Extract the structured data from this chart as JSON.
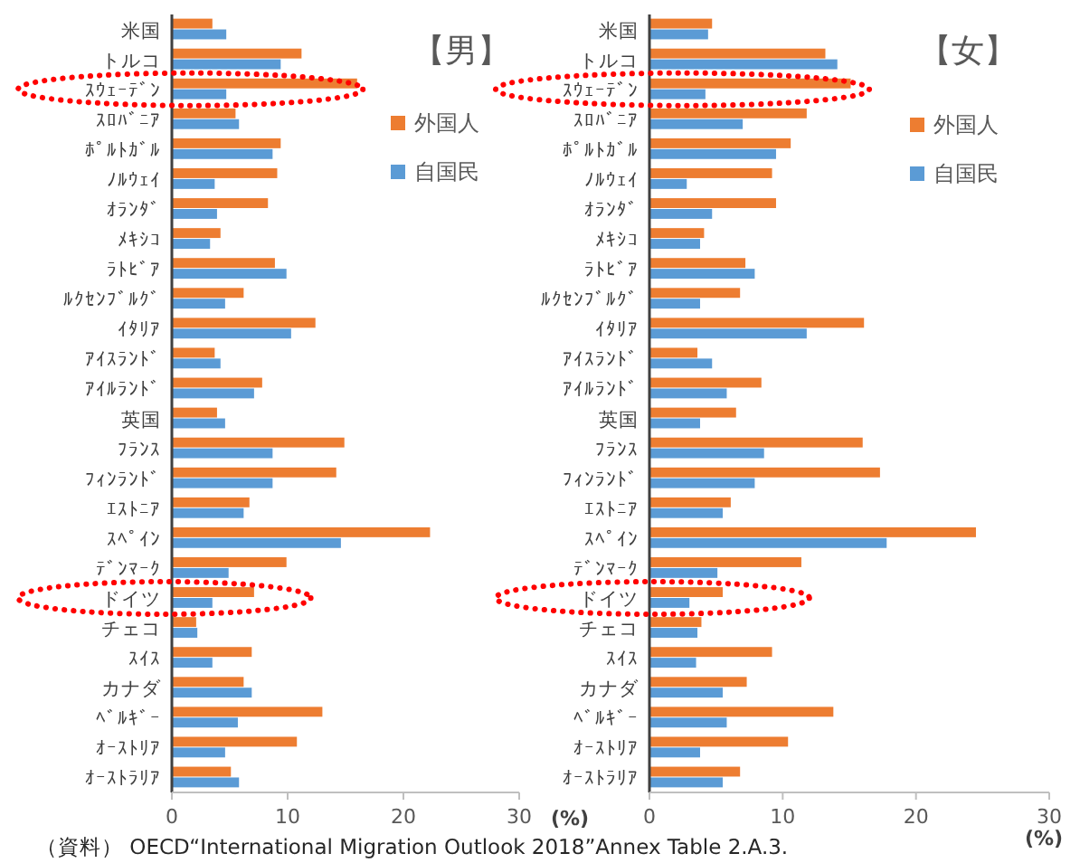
{
  "chart_data": [
    {
      "type": "bar",
      "orientation": "horizontal",
      "title": "【男】",
      "xlabel": "(%)",
      "categories": [
        "米国",
        "トルコ",
        "ｽｳｪｰﾃﾞﾝ",
        "ｽﾛﾊﾞﾆｱ",
        "ﾎﾟﾙﾄｶﾞﾙ",
        "ﾉﾙｳｪｲ",
        "ｵﾗﾝﾀﾞ",
        "ﾒｷｼｺ",
        "ﾗﾄﾋﾞｱ",
        "ﾙｸｾﾝﾌﾞﾙｸﾞ",
        "ｲﾀﾘｱ",
        "ｱｲｽﾗﾝﾄﾞ",
        "ｱｲﾙﾗﾝﾄﾞ",
        "英国",
        "ﾌﾗﾝｽ",
        "ﾌｨﾝﾗﾝﾄﾞ",
        "ｴｽﾄﾆｱ",
        "ｽﾍﾟｲﾝ",
        "ﾃﾞﾝﾏｰｸ",
        "ドイツ",
        "チェコ",
        "ｽｲｽ",
        "カナダ",
        "ﾍﾞﾙｷﾞｰ",
        "ｵｰｽﾄﾘｱ",
        "ｵｰｽﾄﾗﾘｱ"
      ],
      "series": [
        {
          "name": "外国人",
          "color": "#ed7d31",
          "values": [
            3.5,
            11.2,
            16,
            5.5,
            9.4,
            9.1,
            8.3,
            4.2,
            8.9,
            6.2,
            12.4,
            3.7,
            7.8,
            3.9,
            14.9,
            14.2,
            6.7,
            22.3,
            9.9,
            7.1,
            2.1,
            6.9,
            6.2,
            13.0,
            10.8,
            5.1
          ]
        },
        {
          "name": "自国民",
          "color": "#5b9bd5",
          "values": [
            4.7,
            9.4,
            4.7,
            5.8,
            8.7,
            3.7,
            3.9,
            3.3,
            9.9,
            4.6,
            10.3,
            4.2,
            7.1,
            4.6,
            8.7,
            8.7,
            6.2,
            14.6,
            4.9,
            3.5,
            2.2,
            3.5,
            6.9,
            5.7,
            4.6,
            5.8
          ]
        }
      ],
      "xlim": [
        0,
        30
      ],
      "xticks": [
        0,
        10,
        20,
        30
      ],
      "grid": false,
      "legend": "right",
      "annotations": [
        "（資料） OECD“International Migration Outlook 2018”Annex Table 2.A.3."
      ]
    },
    {
      "type": "bar",
      "orientation": "horizontal",
      "title": "【女】",
      "xlabel": "(%)",
      "categories": [
        "米国",
        "トルコ",
        "ｽｳｪｰﾃﾞﾝ",
        "ｽﾛﾊﾞﾆｱ",
        "ﾎﾟﾙﾄｶﾞﾙ",
        "ﾉﾙｳｪｲ",
        "ｵﾗﾝﾀﾞ",
        "ﾒｷｼｺ",
        "ﾗﾄﾋﾞｱ",
        "ﾙｸｾﾝﾌﾞﾙｸﾞ",
        "ｲﾀﾘｱ",
        "ｱｲｽﾗﾝﾄﾞ",
        "ｱｲﾙﾗﾝﾄﾞ",
        "英国",
        "ﾌﾗﾝｽ",
        "ﾌｨﾝﾗﾝﾄﾞ",
        "ｴｽﾄﾆｱ",
        "ｽﾍﾟｲﾝ",
        "ﾃﾞﾝﾏｰｸ",
        "ドイツ",
        "チェコ",
        "ｽｲｽ",
        "カナダ",
        "ﾍﾞﾙｷﾞｰ",
        "ｵｰｽﾄﾘｱ",
        "ｵｰｽﾄﾗﾘｱ"
      ],
      "series": [
        {
          "name": "外国人",
          "color": "#ed7d31",
          "values": [
            4.7,
            13.2,
            15.1,
            11.8,
            10.6,
            9.2,
            9.5,
            4.1,
            7.2,
            6.8,
            16.1,
            3.6,
            8.4,
            6.5,
            16.0,
            17.3,
            6.1,
            24.5,
            11.4,
            5.5,
            3.9,
            9.2,
            7.3,
            13.8,
            10.4,
            6.8
          ]
        },
        {
          "name": "自国民",
          "color": "#5b9bd5",
          "values": [
            4.4,
            14.1,
            4.2,
            7.0,
            9.5,
            2.8,
            4.7,
            3.8,
            7.9,
            3.8,
            11.8,
            4.7,
            5.8,
            3.8,
            8.6,
            7.9,
            5.5,
            17.8,
            5.1,
            3.0,
            3.6,
            3.5,
            5.5,
            5.8,
            3.8,
            5.5
          ]
        }
      ],
      "xlim": [
        0,
        30
      ],
      "xticks": [
        0,
        10,
        20,
        30
      ],
      "grid": false,
      "legend": "right"
    }
  ]
}
